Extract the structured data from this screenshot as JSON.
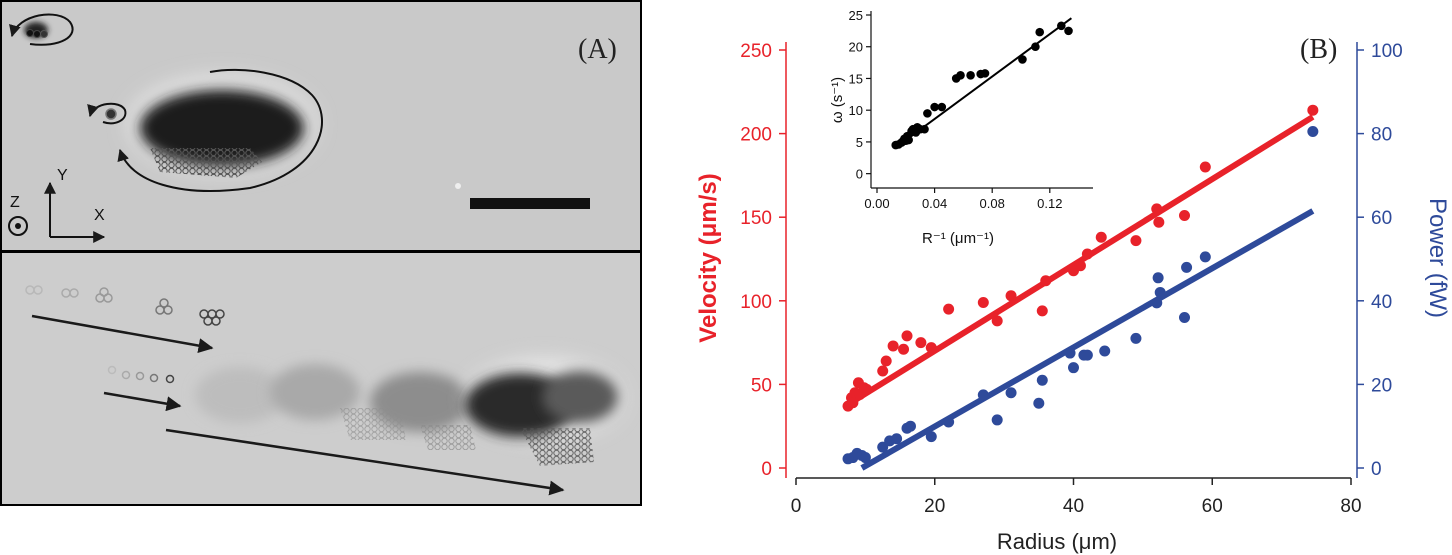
{
  "panel_a": {
    "label": "(A)",
    "axis_labels": {
      "z": "Z",
      "y": "Y",
      "x": "X"
    }
  },
  "panel_b_label": "(B)",
  "colors": {
    "velocity": "#e8222a",
    "power": "#2e4a9a",
    "inset": "#000000"
  },
  "chart_data": [
    {
      "type": "scatter",
      "title": "",
      "xlabel": "Radius (μm)",
      "ylabel": "Velocity (μm/s)",
      "ylabel_right": "Power (fW)",
      "xlim": [
        0,
        80
      ],
      "ylim": [
        0,
        250
      ],
      "ylim_right": [
        0,
        100
      ],
      "xticks": [
        0,
        20,
        40,
        60,
        80
      ],
      "yticks": [
        0,
        50,
        100,
        150,
        200,
        250
      ],
      "yticks_right": [
        0,
        20,
        40,
        60,
        80,
        100
      ],
      "series": [
        {
          "name": "Velocity",
          "axis": "left",
          "color": "#e8222a",
          "points": [
            [
              7.5,
              37
            ],
            [
              8,
              42
            ],
            [
              8.2,
              39
            ],
            [
              8.5,
              45
            ],
            [
              9,
              51
            ],
            [
              9.2,
              44
            ],
            [
              9.8,
              48
            ],
            [
              10.2,
              47
            ],
            [
              12.5,
              58
            ],
            [
              13,
              64
            ],
            [
              14,
              73
            ],
            [
              15.5,
              71
            ],
            [
              16,
              79
            ],
            [
              18,
              75
            ],
            [
              19.5,
              72
            ],
            [
              22,
              95
            ],
            [
              27,
              99
            ],
            [
              29,
              88
            ],
            [
              31,
              103
            ],
            [
              35.5,
              94
            ],
            [
              36,
              112
            ],
            [
              40,
              118
            ],
            [
              41,
              121
            ],
            [
              42,
              128
            ],
            [
              44,
              138
            ],
            [
              49,
              136
            ],
            [
              52,
              155
            ],
            [
              52.3,
              147
            ],
            [
              56,
              151
            ],
            [
              59,
              180
            ],
            [
              74.5,
              214
            ]
          ],
          "fit": {
            "x": [
              7.5,
              74.5
            ],
            "y": [
              38,
              210
            ]
          }
        },
        {
          "name": "Power",
          "axis": "right",
          "color": "#2e4a9a",
          "points": [
            [
              7.5,
              2.2
            ],
            [
              8.2,
              2.5
            ],
            [
              8.8,
              3.5
            ],
            [
              9.5,
              3
            ],
            [
              10,
              2.5
            ],
            [
              12.5,
              5
            ],
            [
              13.5,
              6.5
            ],
            [
              14.5,
              7
            ],
            [
              16,
              9.5
            ],
            [
              16.5,
              10
            ],
            [
              19.5,
              7.5
            ],
            [
              22,
              11
            ],
            [
              27,
              17.5
            ],
            [
              29,
              11.5
            ],
            [
              31,
              18
            ],
            [
              35,
              15.5
            ],
            [
              35.5,
              21
            ],
            [
              39.5,
              27.5
            ],
            [
              40,
              24
            ],
            [
              41.5,
              27
            ],
            [
              42,
              27
            ],
            [
              44.5,
              28
            ],
            [
              49,
              31
            ],
            [
              52,
              39.5
            ],
            [
              52.2,
              45.5
            ],
            [
              52.5,
              42
            ],
            [
              56,
              36
            ],
            [
              56.3,
              48
            ],
            [
              59,
              50.5
            ],
            [
              74.5,
              80.5
            ]
          ],
          "fit": {
            "x": [
              9.5,
              74.5
            ],
            "y": [
              0,
              61.5
            ]
          }
        }
      ]
    },
    {
      "type": "scatter",
      "title": "",
      "xlabel": "R⁻¹ (μm⁻¹)",
      "ylabel": "ω (s⁻¹)",
      "xlim": [
        0,
        0.15
      ],
      "ylim": [
        -1,
        25
      ],
      "xticks": [
        0.0,
        0.04,
        0.08,
        0.12
      ],
      "xtick_labels": [
        "0.00",
        "0.04",
        "0.08",
        "0.12"
      ],
      "yticks": [
        0,
        5,
        10,
        15,
        20,
        25
      ],
      "series": [
        {
          "name": "ω",
          "color": "#000000",
          "points": [
            [
              0.013,
              4.5
            ],
            [
              0.015,
              4.6
            ],
            [
              0.017,
              4.9
            ],
            [
              0.018,
              5.1
            ],
            [
              0.019,
              5.5
            ],
            [
              0.02,
              5.2
            ],
            [
              0.021,
              5.9
            ],
            [
              0.022,
              5.3
            ],
            [
              0.024,
              6.7
            ],
            [
              0.025,
              7
            ],
            [
              0.027,
              6.5
            ],
            [
              0.028,
              7.3
            ],
            [
              0.03,
              7
            ],
            [
              0.033,
              7
            ],
            [
              0.035,
              9.5
            ],
            [
              0.04,
              10.5
            ],
            [
              0.045,
              10.5
            ],
            [
              0.055,
              15
            ],
            [
              0.058,
              15.5
            ],
            [
              0.065,
              15.5
            ],
            [
              0.072,
              15.7
            ],
            [
              0.075,
              15.8
            ],
            [
              0.101,
              18
            ],
            [
              0.11,
              20
            ],
            [
              0.113,
              22.3
            ],
            [
              0.128,
              23.3
            ],
            [
              0.133,
              22.5
            ]
          ],
          "fit": {
            "x": [
              0.013,
              0.135
            ],
            "y": [
              4.1,
              24.5
            ]
          }
        }
      ]
    }
  ]
}
